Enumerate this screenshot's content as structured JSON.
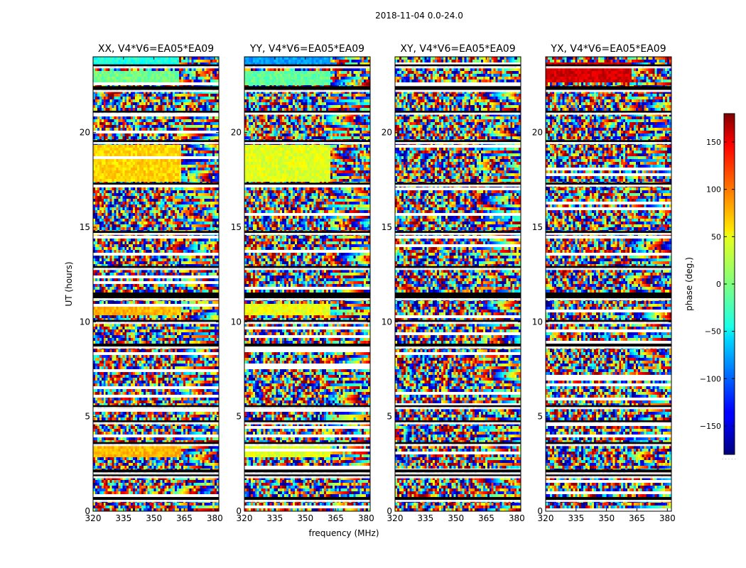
{
  "figure": {
    "suptitle": "2018-11-04 0.0-24.0",
    "xlabel": "frequency (MHz)",
    "ylabel": "UT (hours)"
  },
  "chart_data": {
    "type": "heatmap",
    "suptitle": "2018-11-04 0.0-24.0",
    "panels": [
      {
        "title": "XX, V4*V6=EA05*EA09",
        "pol": "XX"
      },
      {
        "title": "YY, V4*V6=EA05*EA09",
        "pol": "YY"
      },
      {
        "title": "XY, V4*V6=EA05*EA09",
        "pol": "XY"
      },
      {
        "title": "YX, V4*V6=EA05*EA09",
        "pol": "YX"
      }
    ],
    "x_axis": {
      "label": "frequency (MHz)",
      "range": [
        320,
        382
      ],
      "ticks": [
        320,
        335,
        350,
        365,
        380
      ],
      "tick_labels": [
        "320",
        "335",
        "350",
        "365",
        "380"
      ]
    },
    "y_axis": {
      "label": "UT (hours)",
      "range": [
        0,
        24
      ],
      "ticks": [
        0,
        5,
        10,
        15,
        20
      ],
      "tick_labels": [
        "0",
        "5",
        "10",
        "15",
        "20"
      ]
    },
    "colorbar": {
      "label": "phase (deg.)",
      "range": [
        -180,
        180
      ],
      "ticks": [
        -150,
        -100,
        -50,
        0,
        50,
        100,
        150
      ],
      "tick_labels": [
        "−150",
        "−100",
        "−50",
        "0",
        "50",
        "100",
        "150"
      ],
      "colormap": "jet"
    },
    "gap_bands_hours": [
      [
        0.6,
        0.75
      ],
      [
        1.85,
        2.0
      ],
      [
        2.05,
        2.2
      ],
      [
        3.55,
        3.65
      ],
      [
        4.7,
        4.8
      ],
      [
        5.5,
        5.6
      ],
      [
        8.7,
        8.85
      ],
      [
        10.0,
        10.1
      ],
      [
        11.25,
        11.55
      ],
      [
        12.85,
        12.95
      ],
      [
        14.7,
        14.8
      ],
      [
        17.25,
        17.35
      ],
      [
        19.5,
        19.6
      ],
      [
        21.05,
        21.15
      ],
      [
        22.25,
        22.45
      ],
      [
        23.5,
        23.6
      ]
    ],
    "coherent_bands": [
      {
        "panel": "XX",
        "y0": 17.4,
        "y1": 19.4,
        "x_until": 363,
        "phase": 60
      },
      {
        "panel": "XX",
        "y0": 10.35,
        "y1": 11.0,
        "x_until": 363,
        "phase": 70
      },
      {
        "panel": "XX",
        "y0": 2.9,
        "y1": 3.45,
        "x_until": 363,
        "phase": 70
      },
      {
        "panel": "XX",
        "y0": 22.5,
        "y1": 23.3,
        "x_until": 362,
        "phase": -5
      },
      {
        "panel": "XX",
        "y0": 23.6,
        "y1": 24.0,
        "x_until": 362,
        "phase": -35
      },
      {
        "panel": "YY",
        "y0": 17.4,
        "y1": 19.4,
        "x_until": 362,
        "phase": 35
      },
      {
        "panel": "YY",
        "y0": 10.35,
        "y1": 11.0,
        "x_until": 362,
        "phase": 40
      },
      {
        "panel": "YY",
        "y0": 2.9,
        "y1": 3.45,
        "x_until": 362,
        "phase": 35
      },
      {
        "panel": "YY",
        "y0": 22.5,
        "y1": 23.3,
        "x_until": 362,
        "phase": -10
      },
      {
        "panel": "YY",
        "y0": 23.6,
        "y1": 24.0,
        "x_until": 362,
        "phase": -80
      },
      {
        "panel": "YX",
        "y0": 22.7,
        "y1": 23.7,
        "x_until": 362,
        "phase": 150
      }
    ]
  }
}
